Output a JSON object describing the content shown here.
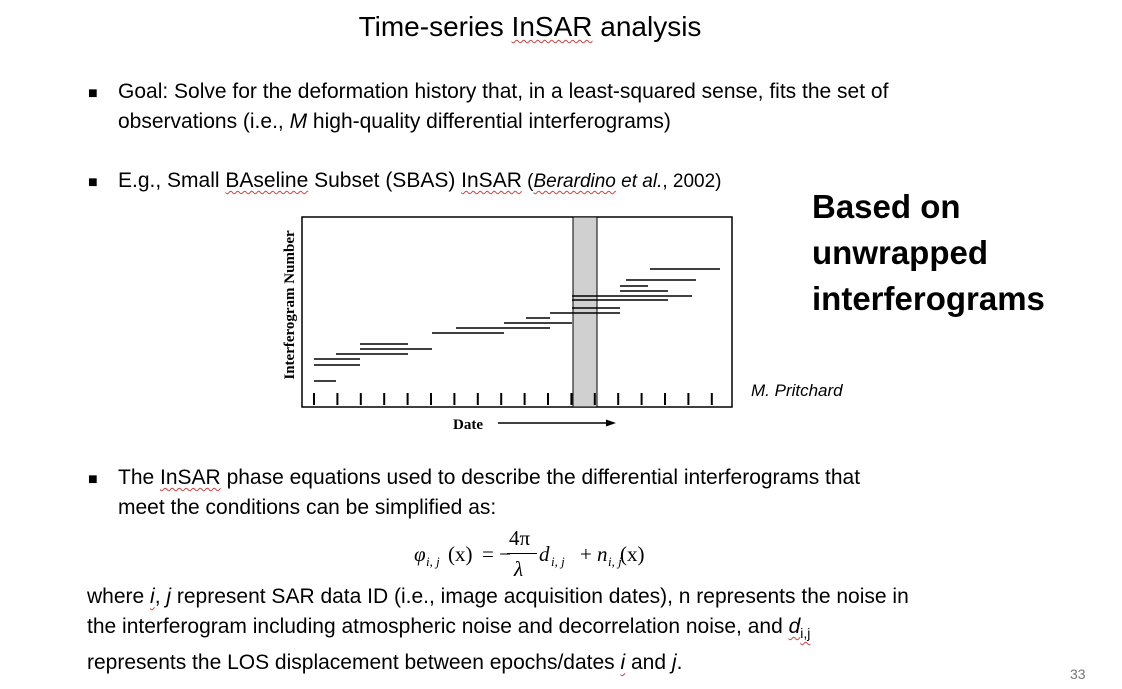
{
  "title": {
    "prefix": "Time-series ",
    "insar": "InSAR",
    "suffix": " analysis"
  },
  "bullet1": {
    "line1": "Goal: Solve for the deformation history that, in a least-squared sense, fits the set of",
    "line2_a": "observations (i.e., ",
    "line2_m": "M",
    "line2_b": " high-quality differential interferograms)"
  },
  "bullet2": {
    "a": "E.g., Small ",
    "b": "BAseline",
    "c": " Subset (SBAS) ",
    "d": "InSAR",
    "e": " (",
    "f": "Berardino",
    "g": " et al.",
    "h": ", 2002)"
  },
  "side_text": {
    "line1": "Based on",
    "line2": "unwrapped",
    "line3": "interferograms"
  },
  "figure": {
    "ylabel": "Interferogram Number",
    "xlabel": "Date",
    "credit": "M. Pritchard"
  },
  "bullet3": {
    "line1_a": "The ",
    "line1_b": "InSAR",
    "line1_c": " phase equations used to describe the differential interferograms that",
    "line2": "meet the conditions can be simplified as:"
  },
  "equation": {
    "phi": "φ",
    "sub_ij": "i, j",
    "x_arg": "(x)",
    "eq_minus": "= −",
    "num": "4π",
    "den": "λ",
    "d": "d",
    "plus": "+",
    "n": "n"
  },
  "paragraph": {
    "l1_a": "where ",
    "l1_i": "i",
    "l1_comma": ", ",
    "l1_j": "j",
    "l1_b": " represent SAR data ID (i.e., image acquisition dates), n represents the noise in",
    "l2_a": "the interferogram including atmospheric noise and decorrelation noise, and ",
    "l2_d": "d",
    "l2_sub": "i,j",
    "l3_a": "represents the LOS displacement between epochs/dates ",
    "l3_i": "i",
    "l3_and": " and ",
    "l3_j": "j",
    "l3_end": "."
  },
  "page_number": "33"
}
